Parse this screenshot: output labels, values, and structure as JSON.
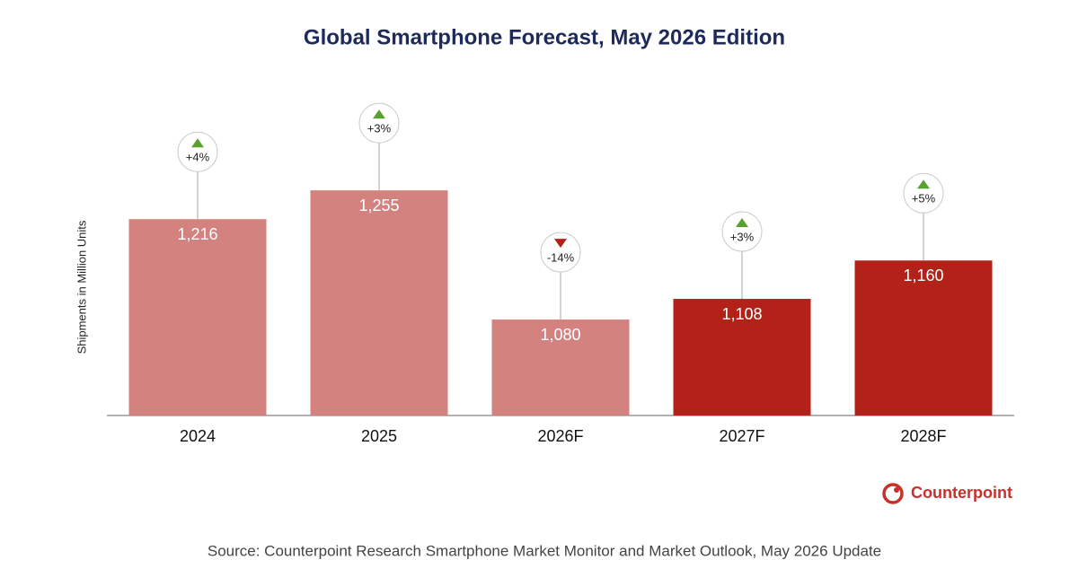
{
  "chart_data": {
    "type": "bar",
    "title": "Global Smartphone Forecast, May 2026 Edition",
    "y_label": "Shipments in Million Units",
    "categories": [
      "2024",
      "2025",
      "2026F",
      "2027F",
      "2028F"
    ],
    "values": [
      1216,
      1255,
      1080,
      1108,
      1160
    ],
    "value_labels": [
      "1,216",
      "1,255",
      "1,080",
      "1,108",
      "1,160"
    ],
    "colors": [
      "#d3827f",
      "#d3827f",
      "#d3827f",
      "#b22219",
      "#b22219"
    ],
    "annotations": [
      "+4%",
      "+3%",
      "-14%",
      "+3%",
      "+5%"
    ],
    "ylim": [
      950,
      1350
    ],
    "brand": "Counterpoint",
    "source": "Source: Counterpoint Research Smartphone Market Monitor and Market Outlook, May 2026 Update"
  }
}
